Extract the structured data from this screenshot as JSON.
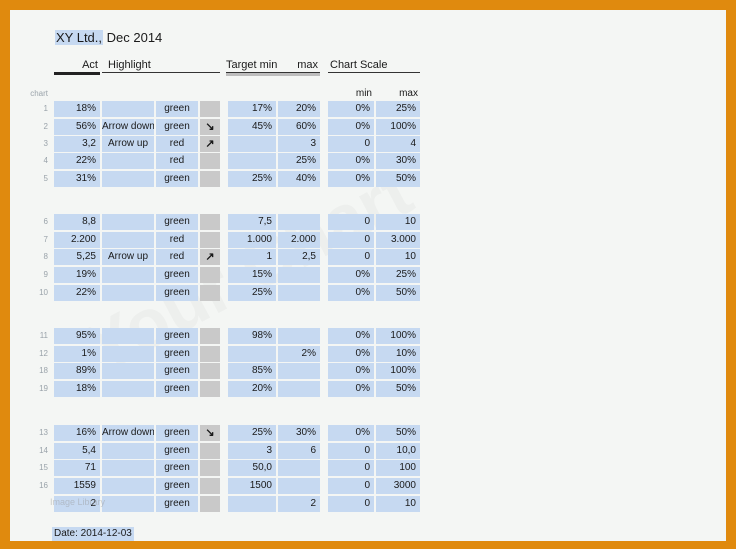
{
  "title": {
    "company": "XY Ltd.,",
    "period": "Dec 2014"
  },
  "headers": {
    "act": "Act",
    "highlight": "Highlight",
    "target_min": "Target min",
    "max": "max",
    "chart_scale": "Chart Scale",
    "chart_label": "chart",
    "scale_min": "min",
    "scale_max": "max"
  },
  "rows": [
    {
      "num": "1",
      "act": "18%",
      "highlight": "",
      "color": "green",
      "arrow": "",
      "tmin": "17%",
      "tmax": "20%",
      "smin": "0%",
      "smax": "25%"
    },
    {
      "num": "2",
      "act": "56%",
      "highlight": "Arrow down",
      "color": "green",
      "arrow": "↘",
      "tmin": "45%",
      "tmax": "60%",
      "smin": "0%",
      "smax": "100%"
    },
    {
      "num": "3",
      "act": "3,2",
      "highlight": "Arrow up",
      "color": "red",
      "arrow": "↗",
      "tmin": "",
      "tmax": "3",
      "smin": "0",
      "smax": "4"
    },
    {
      "num": "4",
      "act": "22%",
      "highlight": "",
      "color": "red",
      "arrow": "",
      "tmin": "",
      "tmax": "25%",
      "smin": "0%",
      "smax": "30%"
    },
    {
      "num": "5",
      "act": "31%",
      "highlight": "",
      "color": "green",
      "arrow": "",
      "tmin": "25%",
      "tmax": "40%",
      "smin": "0%",
      "smax": "50%"
    },
    {
      "num": "6",
      "act": "8,8",
      "highlight": "",
      "color": "green",
      "arrow": "",
      "tmin": "7,5",
      "tmax": "",
      "smin": "0",
      "smax": "10"
    },
    {
      "num": "7",
      "act": "2.200",
      "highlight": "",
      "color": "red",
      "arrow": "",
      "tmin": "1.000",
      "tmax": "2.000",
      "smin": "0",
      "smax": "3.000"
    },
    {
      "num": "8",
      "act": "5,25",
      "highlight": "Arrow up",
      "color": "red",
      "arrow": "↗",
      "tmin": "1",
      "tmax": "2,5",
      "smin": "0",
      "smax": "10"
    },
    {
      "num": "9",
      "act": "19%",
      "highlight": "",
      "color": "green",
      "arrow": "",
      "tmin": "15%",
      "tmax": "",
      "smin": "0%",
      "smax": "25%"
    },
    {
      "num": "10",
      "act": "22%",
      "highlight": "",
      "color": "green",
      "arrow": "",
      "tmin": "25%",
      "tmax": "",
      "smin": "0%",
      "smax": "50%"
    },
    {
      "num": "11",
      "act": "95%",
      "highlight": "",
      "color": "green",
      "arrow": "",
      "tmin": "98%",
      "tmax": "",
      "smin": "0%",
      "smax": "100%"
    },
    {
      "num": "12",
      "act": "1%",
      "highlight": "",
      "color": "green",
      "arrow": "",
      "tmin": "",
      "tmax": "2%",
      "smin": "0%",
      "smax": "10%"
    },
    {
      "num": "18",
      "act": "89%",
      "highlight": "",
      "color": "green",
      "arrow": "",
      "tmin": "85%",
      "tmax": "",
      "smin": "0%",
      "smax": "100%"
    },
    {
      "num": "19",
      "act": "18%",
      "highlight": "",
      "color": "green",
      "arrow": "",
      "tmin": "20%",
      "tmax": "",
      "smin": "0%",
      "smax": "50%"
    },
    {
      "num": "13",
      "act": "16%",
      "highlight": "Arrow down",
      "color": "green",
      "arrow": "↘",
      "tmin": "25%",
      "tmax": "30%",
      "smin": "0%",
      "smax": "50%"
    },
    {
      "num": "14",
      "act": "5,4",
      "highlight": "",
      "color": "green",
      "arrow": "",
      "tmin": "3",
      "tmax": "6",
      "smin": "0",
      "smax": "10,0"
    },
    {
      "num": "15",
      "act": "71",
      "highlight": "",
      "color": "green",
      "arrow": "",
      "tmin": "50,0",
      "tmax": "",
      "smin": "0",
      "smax": "100"
    },
    {
      "num": "16",
      "act": "1559",
      "highlight": "",
      "color": "green",
      "arrow": "",
      "tmin": "1500",
      "tmax": "",
      "smin": "0",
      "smax": "3000"
    },
    {
      "num": "",
      "act": "2",
      "highlight": "",
      "color": "green",
      "arrow": "",
      "tmin": "",
      "tmax": "2",
      "smin": "0",
      "smax": "10"
    }
  ],
  "footer": {
    "date": "Date: 2014-12-03"
  }
}
